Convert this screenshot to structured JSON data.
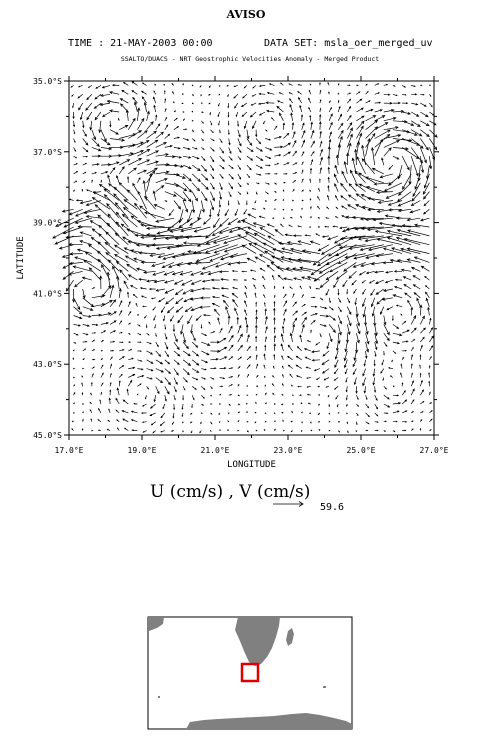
{
  "header": {
    "title": "AVISO",
    "time_text": "TIME : 21-MAY-2003 00:00",
    "dataset_text": "DATA SET: msla_oer_merged_uv",
    "credit": "SSALTO/DUACS - NRT Geostrophic Velocities Anomaly - Merged Product"
  },
  "chart_data": {
    "type": "vector-field",
    "xlabel": "LONGITUDE",
    "ylabel": "LATITUDE",
    "xlim": [
      17.0,
      27.0
    ],
    "ylim": [
      -45.0,
      -35.0
    ],
    "x_ticks": [
      17,
      19,
      21,
      23,
      25,
      27
    ],
    "x_tick_labels": [
      "17.0°E",
      "19.0°E",
      "21.0°E",
      "23.0°E",
      "25.0°E",
      "27.0°E"
    ],
    "y_ticks": [
      -35,
      -37,
      -39,
      -41,
      -43,
      -45
    ],
    "y_tick_labels": [
      "35.0°S",
      "37.0°S",
      "39.0°S",
      "41.0°S",
      "43.0°S",
      "45.0°S"
    ],
    "units_label": "U (cm/s) , V (cm/s)",
    "reference_vector": 59.6,
    "grid": false,
    "arrow_color": "#000000",
    "fields": {
      "jets": [
        {
          "lon": [
            17.0,
            18.0,
            19.0,
            20.0,
            21.0,
            22.0,
            23.0,
            24.0,
            25.0,
            26.0,
            27.0
          ],
          "lat": [
            -39.2,
            -38.4,
            -38.3,
            -39.2,
            -39.6,
            -39.4,
            -40.0,
            -40.2,
            -39.6,
            -39.4,
            -39.7
          ],
          "width_deg": 0.45,
          "speed": 45,
          "direction": "west"
        }
      ],
      "eddies": [
        {
          "lon": 18.3,
          "lat": -36.2,
          "r": 0.9,
          "speed": 28,
          "sense": 1
        },
        {
          "lon": 25.8,
          "lat": -37.3,
          "r": 1.1,
          "speed": 45,
          "sense": -1
        },
        {
          "lon": 19.3,
          "lat": -38.8,
          "r": 1.3,
          "speed": 40,
          "sense": -1
        },
        {
          "lon": 22.5,
          "lat": -36.3,
          "r": 1.0,
          "speed": 18,
          "sense": 1
        },
        {
          "lon": 17.6,
          "lat": -40.8,
          "r": 0.8,
          "speed": 35,
          "sense": 1
        },
        {
          "lon": 20.8,
          "lat": -41.9,
          "r": 1.1,
          "speed": 20,
          "sense": 1
        },
        {
          "lon": 23.8,
          "lat": -42.2,
          "r": 1.0,
          "speed": 18,
          "sense": -1
        },
        {
          "lon": 26.0,
          "lat": -41.6,
          "r": 1.0,
          "speed": 22,
          "sense": 1
        },
        {
          "lon": 19.0,
          "lat": -43.8,
          "r": 1.0,
          "speed": 15,
          "sense": -1
        },
        {
          "lon": 25.8,
          "lat": -43.6,
          "r": 0.9,
          "speed": 14,
          "sense": 1
        }
      ]
    }
  },
  "inset_map": {
    "land_color": "#808080",
    "box_color": "#e00000",
    "region": {
      "lon": [
        17.0,
        27.0
      ],
      "lat": [
        -45.0,
        -35.0
      ]
    }
  }
}
